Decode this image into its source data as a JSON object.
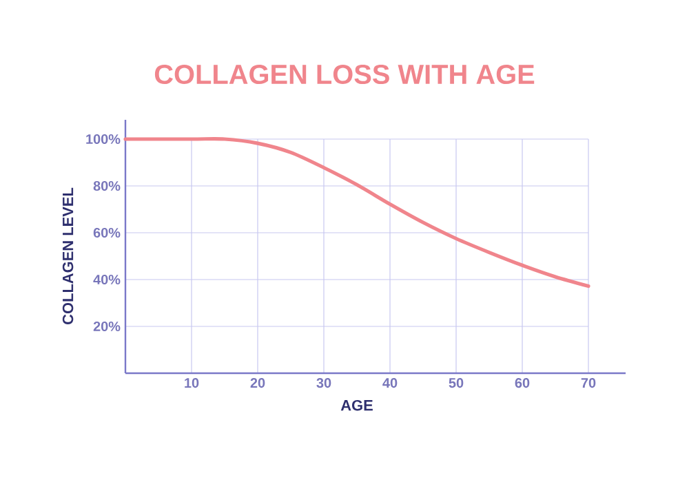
{
  "chart_data": {
    "type": "line",
    "title": "COLLAGEN LOSS WITH AGE",
    "xlabel": "AGE",
    "ylabel": "COLLAGEN LEVEL",
    "x": [
      0,
      10,
      15,
      20,
      25,
      30,
      35,
      40,
      45,
      50,
      55,
      60,
      65,
      70
    ],
    "series": [
      {
        "color": "#f0858c",
        "values": [
          100,
          100,
          100,
          98.2,
          94.3,
          87.8,
          80.5,
          72.2,
          64.4,
          57.5,
          51.6,
          46.1,
          41.2,
          37.2
        ]
      }
    ],
    "xlim": [
      0,
      70
    ],
    "ylim": [
      0,
      100
    ],
    "xticks": [
      10,
      20,
      30,
      40,
      50,
      60,
      70
    ],
    "yticks": [
      {
        "value": 20,
        "label": "20%"
      },
      {
        "value": 40,
        "label": "40%"
      },
      {
        "value": 60,
        "label": "60%"
      },
      {
        "value": 80,
        "label": "80%"
      },
      {
        "value": 100,
        "label": "100%"
      }
    ],
    "grid": true,
    "legend": false,
    "marker": "none",
    "line_style": "solid"
  }
}
